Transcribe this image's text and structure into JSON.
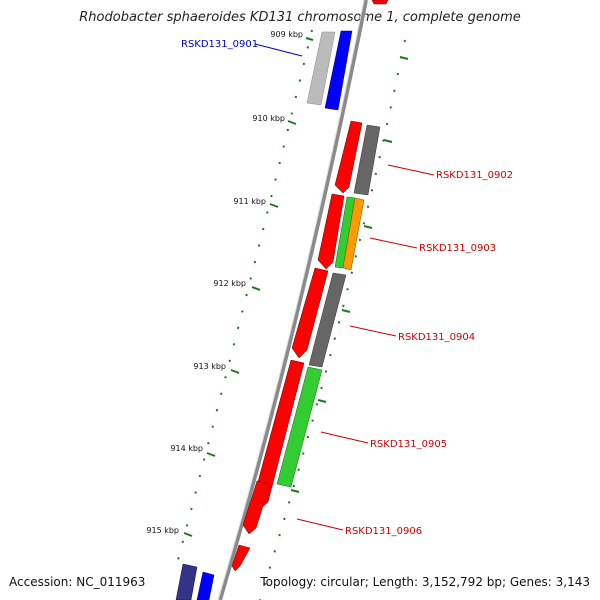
{
  "title": "Rhodobacter sphaeroides KD131 chromosome 1, complete genome",
  "footer": {
    "accession": "Accession: NC_011963",
    "summary": "Topology: circular; Length: 3,152,792 bp; Genes: 3,143"
  },
  "scale_labels": [
    "909 kbp",
    "910 kbp",
    "911 kbp",
    "912 kbp",
    "913 kbp",
    "914 kbp",
    "915 kbp"
  ],
  "gene_labels": [
    {
      "text": "RSKD131_0901",
      "color": "#0000cc"
    },
    {
      "text": "RSKD131_0902",
      "color": "#cc0000"
    },
    {
      "text": "RSKD131_0903",
      "color": "#cc0000"
    },
    {
      "text": "RSKD131_0904",
      "color": "#cc0000"
    },
    {
      "text": "RSKD131_0905",
      "color": "#cc0000"
    },
    {
      "text": "RSKD131_0906",
      "color": "#cc0000"
    }
  ],
  "colors": {
    "backbone": "#8a8a8a",
    "scale_ticks": "#1a7a1a",
    "cds": "#ff0000",
    "gene_dark": "#666666",
    "gene_green": "#33cc33",
    "gene_orange": "#ff9900",
    "gene_blue": "#0000ff",
    "gene_grey": "#bbbbbb",
    "gene_navy": "#333388"
  }
}
